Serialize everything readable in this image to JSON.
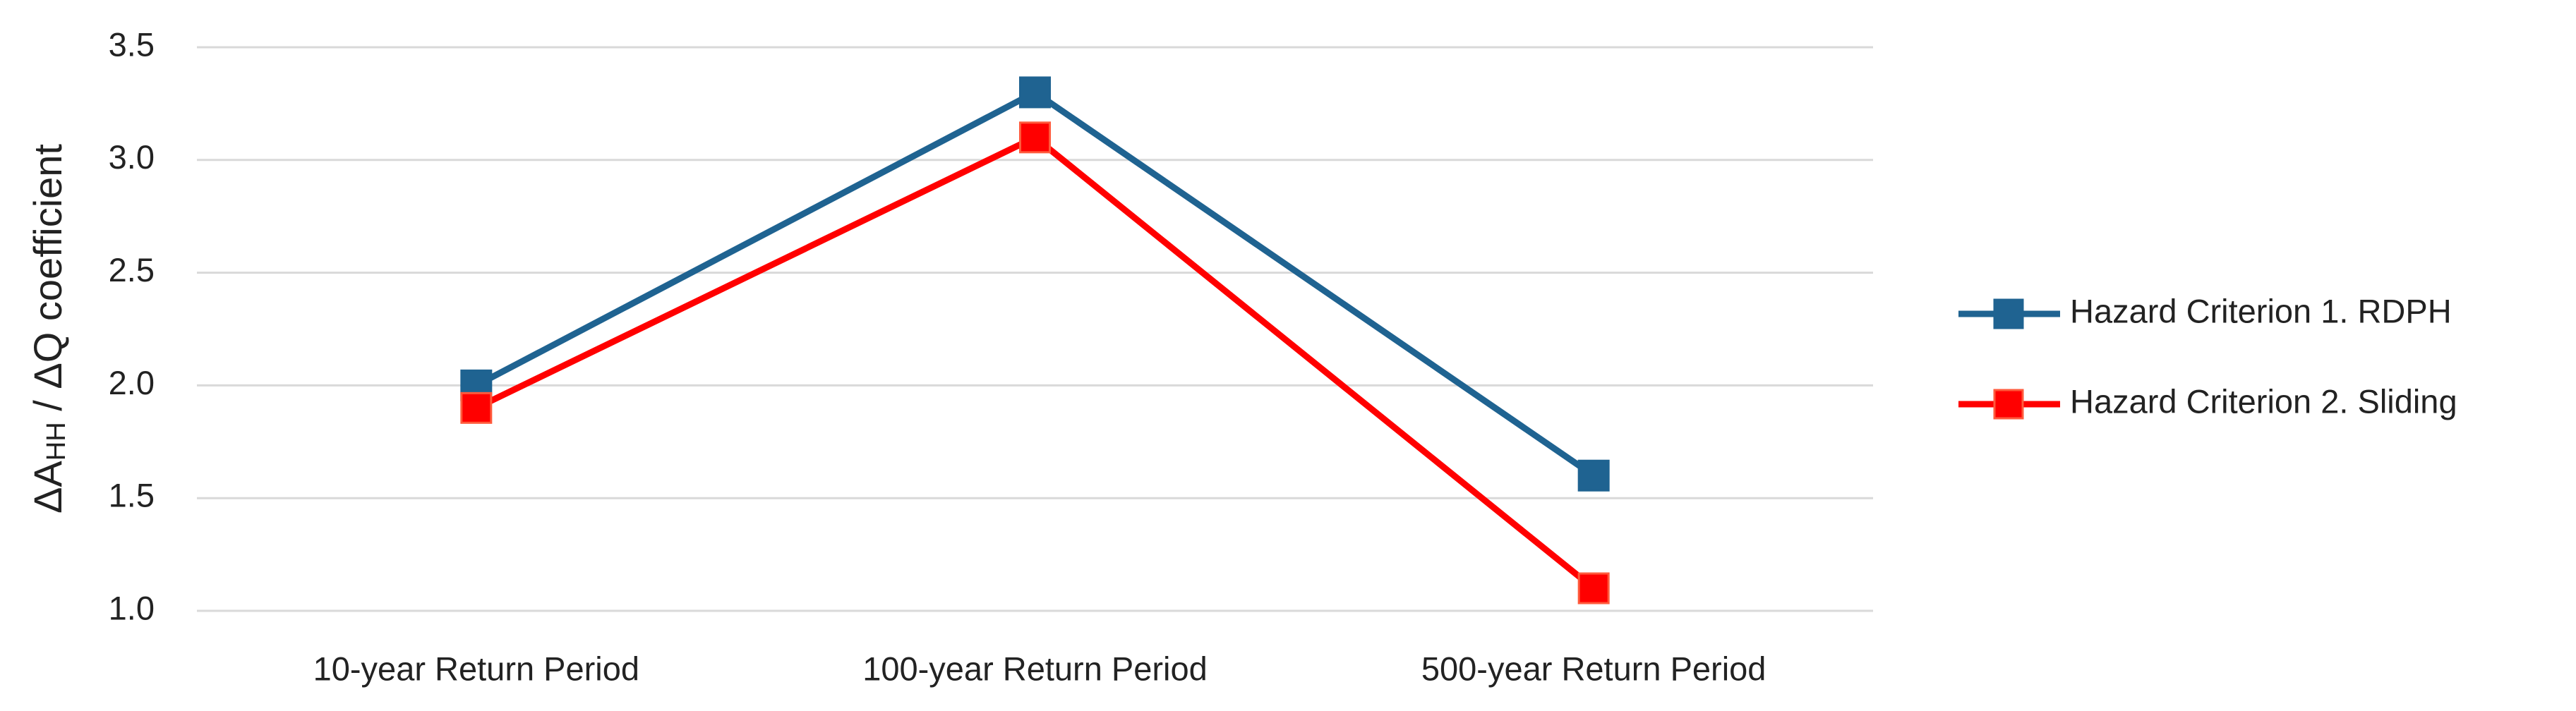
{
  "chart_data": {
    "type": "line",
    "y_label": [
      "ΔA",
      "HH",
      " / ΔQ coefficient"
    ],
    "categories": [
      "10-year Return Period",
      "100-year Return Period",
      "500-year Return Period"
    ],
    "series": [
      {
        "name": "Hazard Criterion 1. RDPH",
        "color": "#1f6391",
        "values": [
          2.0,
          3.3,
          1.6
        ]
      },
      {
        "name": "Hazard Criterion 2. Sliding",
        "color": "#ff0000",
        "values": [
          1.9,
          3.1,
          1.1
        ]
      }
    ],
    "ylim": [
      1.0,
      3.5
    ],
    "yticks": [
      {
        "value": 1,
        "label": "1.0"
      },
      1.5,
      {
        "value": 2,
        "label": "2.0"
      },
      2.5,
      {
        "value": 3,
        "label": "3.0"
      },
      3.5
    ],
    "grid": true,
    "legend": "right"
  }
}
